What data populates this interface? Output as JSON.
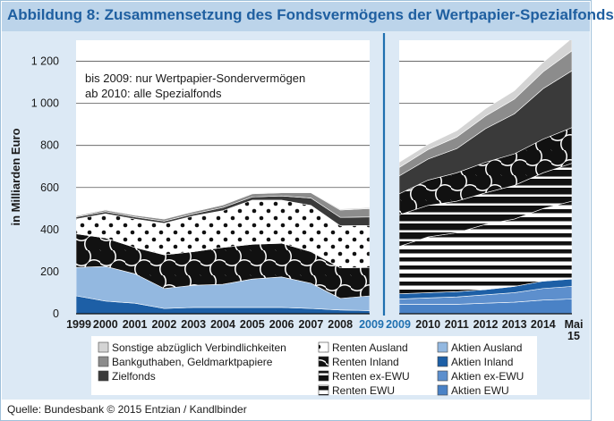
{
  "title": "Abbildung 8: Zusammensetzung des Fondsvermögens der Wertpapier-Spezialfonds",
  "source": "Quelle: Bundesbank © 2015 Entzian / Kandlbinder",
  "colors": {
    "header_bg": "#bcd4ea",
    "title_text": "#1f5fa0",
    "chart_bg": "#dce9f5",
    "break_line": "#1f70b0"
  },
  "chart_data": {
    "type": "area",
    "stacked": true,
    "ylabel": "in Milliarden Euro",
    "ylim": [
      0,
      1300
    ],
    "yticks": [
      0,
      200,
      400,
      600,
      800,
      1000,
      1200
    ],
    "ytick_labels": [
      "0",
      "200",
      "400",
      "600",
      "800",
      "1 000",
      "1 200"
    ],
    "annotation_lines": [
      "bis 2009: nur Wertpapier-Sondervermögen",
      "ab 2010: alle Spezialfonds"
    ],
    "grid": true,
    "legend_position": "bottom",
    "left_panel": {
      "x": [
        "1999",
        "2000",
        "2001",
        "2002",
        "2003",
        "2004",
        "2005",
        "2006",
        "2007",
        "2008",
        "2009"
      ],
      "x_labels": [
        "1999",
        "2000",
        "2001",
        "2002",
        "2003",
        "2004",
        "2005",
        "2006",
        "2007",
        "2008",
        "2009"
      ],
      "highlight_label": "2009",
      "series": [
        {
          "key": "aktien_inland",
          "values": [
            85,
            60,
            50,
            25,
            30,
            30,
            30,
            30,
            25,
            18,
            15
          ]
        },
        {
          "key": "aktien_ausland",
          "values": [
            135,
            165,
            140,
            95,
            105,
            110,
            135,
            145,
            120,
            55,
            70
          ]
        },
        {
          "key": "renten_inland",
          "values": [
            160,
            135,
            125,
            160,
            160,
            175,
            165,
            160,
            150,
            145,
            135
          ]
        },
        {
          "key": "renten_ausland",
          "values": [
            70,
            115,
            135,
            150,
            170,
            175,
            210,
            205,
            220,
            200,
            200
          ]
        },
        {
          "key": "zielfonds",
          "values": [
            10,
            10,
            10,
            10,
            10,
            15,
            15,
            20,
            35,
            40,
            40
          ]
        },
        {
          "key": "bankguthaben",
          "values": [
            5,
            8,
            8,
            10,
            10,
            12,
            15,
            15,
            25,
            35,
            40
          ]
        },
        {
          "key": "sonstige",
          "values": [
            3,
            3,
            3,
            3,
            3,
            3,
            3,
            3,
            3,
            5,
            5
          ]
        }
      ]
    },
    "right_panel": {
      "x": [
        "2009",
        "2010",
        "2011",
        "2012",
        "2013",
        "2014",
        "Mai 2015"
      ],
      "x_labels": [
        "2009",
        "2010",
        "2011",
        "2012",
        "2013",
        "2014",
        "Mai 15"
      ],
      "highlight_label": "2009",
      "series": [
        {
          "key": "aktien_ewu",
          "values": [
            45,
            45,
            45,
            50,
            55,
            65,
            70
          ]
        },
        {
          "key": "aktien_ex_ewu",
          "values": [
            25,
            30,
            35,
            40,
            45,
            55,
            60
          ]
        },
        {
          "key": "aktien_inland",
          "values": [
            25,
            25,
            25,
            25,
            30,
            35,
            35
          ]
        },
        {
          "key": "renten_ewu",
          "values": [
            225,
            265,
            280,
            310,
            320,
            345,
            370
          ]
        },
        {
          "key": "renten_ex_ewu",
          "values": [
            150,
            150,
            150,
            150,
            160,
            170,
            180
          ]
        },
        {
          "key": "renten_inland",
          "values": [
            100,
            120,
            135,
            145,
            150,
            160,
            170
          ]
        },
        {
          "key": "zielfonds",
          "values": [
            85,
            100,
            115,
            160,
            190,
            240,
            270
          ]
        },
        {
          "key": "bankguthaben",
          "values": [
            40,
            45,
            55,
            60,
            70,
            80,
            95
          ]
        },
        {
          "key": "sonstige",
          "values": [
            25,
            25,
            30,
            35,
            40,
            45,
            60
          ]
        }
      ]
    },
    "legend": [
      {
        "key": "sonstige",
        "label": "Sonstige abzüglich Verbindlichkeiten",
        "color": "#d4d4d4"
      },
      {
        "key": "bankguthaben",
        "label": "Bankguthaben, Geldmarktpapiere",
        "color": "#8c8c8c"
      },
      {
        "key": "zielfonds",
        "label": "Zielfonds",
        "color": "#3a3a3a"
      },
      {
        "key": "renten_ausland",
        "label": "Renten Ausland",
        "pattern": "dots"
      },
      {
        "key": "renten_inland",
        "label": "Renten Inland",
        "pattern": "circles"
      },
      {
        "key": "renten_ex_ewu",
        "label": "Renten ex-EWU",
        "pattern": "thick-stripes"
      },
      {
        "key": "renten_ewu",
        "label": "Renten EWU",
        "pattern": "thin-stripes"
      },
      {
        "key": "aktien_ausland",
        "label": "Aktien Ausland",
        "color": "#93b8e0"
      },
      {
        "key": "aktien_inland",
        "label": "Aktien Inland",
        "color": "#1d5fa6"
      },
      {
        "key": "aktien_ex_ewu",
        "label": "Aktien ex-EWU",
        "color": "#5d8fcd"
      },
      {
        "key": "aktien_ewu",
        "label": "Aktien EWU",
        "color": "#4a82c6"
      }
    ]
  }
}
